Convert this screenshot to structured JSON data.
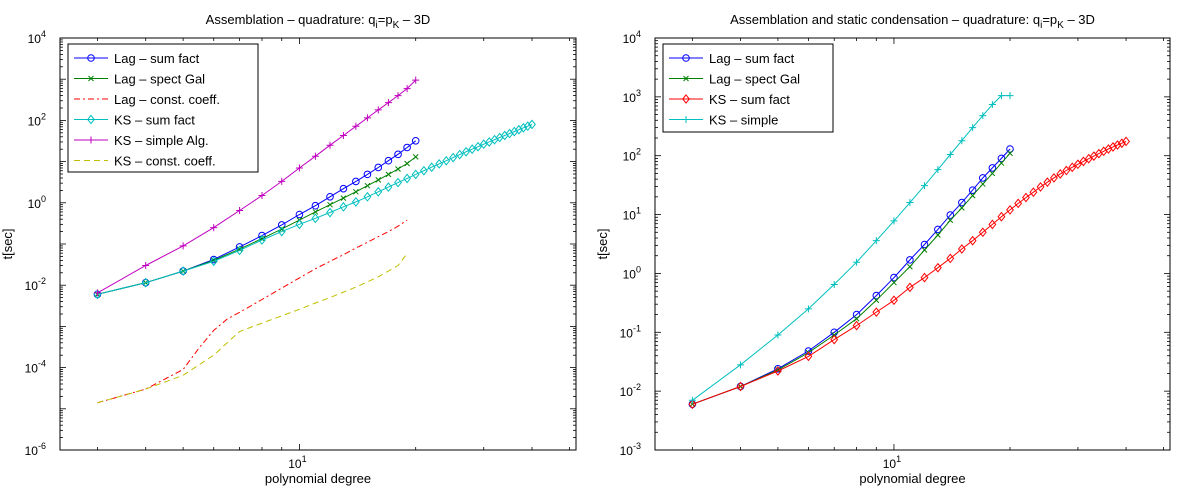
{
  "chart_data": [
    {
      "type": "line",
      "title_prefix": "Assemblation – quadrature: q",
      "title_sub1": "i",
      "title_mid": "=p",
      "title_sub2": "K",
      "title_suffix": " – 3D",
      "xlabel": "polynomial degree",
      "ylabel": "t[sec]",
      "xscale": "log",
      "yscale": "log",
      "xlim": [
        2.4,
        52
      ],
      "ylim": [
        1e-06,
        10000.0
      ],
      "xtick_labels": [
        {
          "base": "10",
          "exp": "1",
          "value": 10
        }
      ],
      "ytick_labels": [
        {
          "base": "10",
          "exp": "-6",
          "value": 1e-06
        },
        {
          "base": "10",
          "exp": "-4",
          "value": 0.0001
        },
        {
          "base": "10",
          "exp": "-2",
          "value": 0.01
        },
        {
          "base": "10",
          "exp": "0",
          "value": 1
        },
        {
          "base": "10",
          "exp": "2",
          "value": 100
        },
        {
          "base": "10",
          "exp": "4",
          "value": 10000
        }
      ],
      "legend_placement": "top-left",
      "series": [
        {
          "name": "Lag – sum fact",
          "color": "#0000ff",
          "dash": "",
          "marker": "circle",
          "x": [
            3,
            4,
            5,
            6,
            7,
            8,
            9,
            10,
            11,
            12,
            13,
            14,
            15,
            16,
            17,
            18,
            19,
            20
          ],
          "y": [
            0.006,
            0.0115,
            0.022,
            0.042,
            0.085,
            0.16,
            0.29,
            0.52,
            0.85,
            1.4,
            2.2,
            3.3,
            4.9,
            7.2,
            10.5,
            15,
            22,
            32
          ]
        },
        {
          "name": "Lag – spect Gal",
          "color": "#008000",
          "dash": "",
          "marker": "x",
          "x": [
            3,
            4,
            5,
            6,
            7,
            8,
            9,
            10,
            11,
            12,
            13,
            14,
            15,
            16,
            17,
            18,
            19,
            20
          ],
          "y": [
            0.006,
            0.0115,
            0.022,
            0.04,
            0.075,
            0.135,
            0.23,
            0.38,
            0.6,
            0.9,
            1.3,
            1.85,
            2.6,
            3.6,
            4.9,
            6.6,
            9,
            13
          ]
        },
        {
          "name": "Lag – const. coeff.",
          "color": "#ff0000",
          "dash": "6,3,2,3",
          "marker": "none",
          "x": [
            3,
            4,
            5,
            5.5,
            6,
            6.5,
            7,
            8,
            9,
            10,
            11,
            12,
            13,
            14,
            15,
            16,
            17,
            18,
            19
          ],
          "y": [
            1.4e-05,
            3e-05,
            9e-05,
            0.0003,
            0.0008,
            0.0015,
            0.0022,
            0.0045,
            0.0085,
            0.015,
            0.025,
            0.038,
            0.055,
            0.08,
            0.11,
            0.15,
            0.2,
            0.27,
            0.38
          ]
        },
        {
          "name": "KS – sum fact",
          "color": "#00bfbf",
          "dash": "",
          "marker": "diamond",
          "x": [
            3,
            4,
            5,
            6,
            7,
            8,
            9,
            10,
            11,
            12,
            13,
            14,
            15,
            16,
            17,
            18,
            19,
            20,
            21,
            22,
            23,
            24,
            25,
            26,
            27,
            28,
            29,
            30,
            31,
            32,
            33,
            34,
            35,
            36,
            37,
            38,
            39,
            40
          ],
          "y": [
            0.006,
            0.0115,
            0.022,
            0.038,
            0.07,
            0.125,
            0.2,
            0.3,
            0.42,
            0.58,
            0.8,
            1.05,
            1.4,
            1.85,
            2.4,
            3.1,
            3.9,
            4.9,
            6,
            7.3,
            8.8,
            10.5,
            12.5,
            14.8,
            17.3,
            20,
            23,
            26.5,
            30,
            34,
            38.5,
            43,
            48,
            53.5,
            59.5,
            66,
            72.5,
            80
          ]
        },
        {
          "name": "KS – simple Alg.",
          "color": "#bf00bf",
          "dash": "",
          "marker": "plus",
          "x": [
            3,
            4,
            5,
            6,
            7,
            8,
            9,
            10,
            11,
            12,
            13,
            14,
            15,
            16,
            17,
            18,
            19,
            20
          ],
          "y": [
            0.0065,
            0.03,
            0.09,
            0.25,
            0.65,
            1.5,
            3.3,
            7,
            13.5,
            25,
            43,
            72,
            115,
            180,
            270,
            400,
            590,
            950
          ]
        },
        {
          "name": "KS – const. coeff.",
          "color": "#bfbf00",
          "dash": "6,4",
          "marker": "none",
          "x": [
            3,
            4,
            5,
            6,
            6.5,
            7,
            8,
            9,
            10,
            11,
            12,
            13,
            14,
            15,
            16,
            17,
            18,
            19
          ],
          "y": [
            1.4e-05,
            3e-05,
            6.5e-05,
            0.0002,
            0.0004,
            0.00075,
            0.0012,
            0.0018,
            0.0026,
            0.0037,
            0.005,
            0.0068,
            0.009,
            0.012,
            0.016,
            0.022,
            0.03,
            0.058
          ]
        }
      ]
    },
    {
      "type": "line",
      "title_prefix": "Assemblation and static condensation – quadrature: q",
      "title_sub1": "i",
      "title_mid": "=p",
      "title_sub2": "K",
      "title_suffix": " – 3D",
      "xlabel": "polynomial degree",
      "ylabel": "t[sec]",
      "xscale": "log",
      "yscale": "log",
      "xlim": [
        2.4,
        52
      ],
      "ylim": [
        0.001,
        10000.0
      ],
      "xtick_labels": [
        {
          "base": "10",
          "exp": "1",
          "value": 10
        }
      ],
      "ytick_labels": [
        {
          "base": "10",
          "exp": "-3",
          "value": 0.001
        },
        {
          "base": "10",
          "exp": "-2",
          "value": 0.01
        },
        {
          "base": "10",
          "exp": "-1",
          "value": 0.1
        },
        {
          "base": "10",
          "exp": "0",
          "value": 1
        },
        {
          "base": "10",
          "exp": "1",
          "value": 10
        },
        {
          "base": "10",
          "exp": "2",
          "value": 100
        },
        {
          "base": "10",
          "exp": "3",
          "value": 1000
        },
        {
          "base": "10",
          "exp": "4",
          "value": 10000
        }
      ],
      "legend_placement": "top-left",
      "series": [
        {
          "name": "Lag – sum fact",
          "color": "#0000ff",
          "dash": "",
          "marker": "circle",
          "x": [
            3,
            4,
            5,
            6,
            7,
            8,
            9,
            10,
            11,
            12,
            13,
            14,
            15,
            16,
            17,
            18,
            19,
            20
          ],
          "y": [
            0.006,
            0.012,
            0.024,
            0.048,
            0.1,
            0.2,
            0.42,
            0.85,
            1.7,
            3.1,
            5.6,
            9.8,
            16,
            26,
            42,
            62,
            90,
            130
          ]
        },
        {
          "name": "Lag – spect Gal",
          "color": "#008000",
          "dash": "",
          "marker": "x",
          "x": [
            3,
            4,
            5,
            6,
            7,
            8,
            9,
            10,
            11,
            12,
            13,
            14,
            15,
            16,
            17,
            18,
            19,
            20
          ],
          "y": [
            0.006,
            0.012,
            0.023,
            0.045,
            0.09,
            0.17,
            0.35,
            0.7,
            1.3,
            2.5,
            4.5,
            8,
            13,
            21,
            33,
            50,
            75,
            110
          ]
        },
        {
          "name": "KS – sum fact",
          "color": "#ff0000",
          "dash": "",
          "marker": "diamond",
          "x": [
            3,
            4,
            5,
            6,
            7,
            8,
            9,
            10,
            11,
            12,
            13,
            14,
            15,
            16,
            17,
            18,
            19,
            20,
            21,
            22,
            23,
            24,
            25,
            26,
            27,
            28,
            29,
            30,
            31,
            32,
            33,
            34,
            35,
            36,
            37,
            38,
            39,
            40
          ],
          "y": [
            0.006,
            0.012,
            0.022,
            0.039,
            0.075,
            0.13,
            0.22,
            0.35,
            0.58,
            0.85,
            1.25,
            1.8,
            2.6,
            3.6,
            5,
            6.8,
            9.2,
            12,
            15.5,
            19.5,
            24,
            29.5,
            35.5,
            42,
            49,
            56,
            63.5,
            71.5,
            80,
            89,
            98.5,
            108.5,
            119,
            130,
            141,
            152,
            163,
            175
          ]
        },
        {
          "name": "KS – simple",
          "color": "#00bfbf",
          "dash": "",
          "marker": "plus",
          "x": [
            3,
            4,
            5,
            6,
            7,
            8,
            9,
            10,
            11,
            12,
            13,
            14,
            15,
            16,
            17,
            18,
            19,
            20
          ],
          "y": [
            0.007,
            0.028,
            0.09,
            0.25,
            0.65,
            1.55,
            3.6,
            7.8,
            16,
            31,
            58,
            105,
            180,
            300,
            480,
            740,
            1050,
            1050
          ]
        }
      ]
    }
  ]
}
